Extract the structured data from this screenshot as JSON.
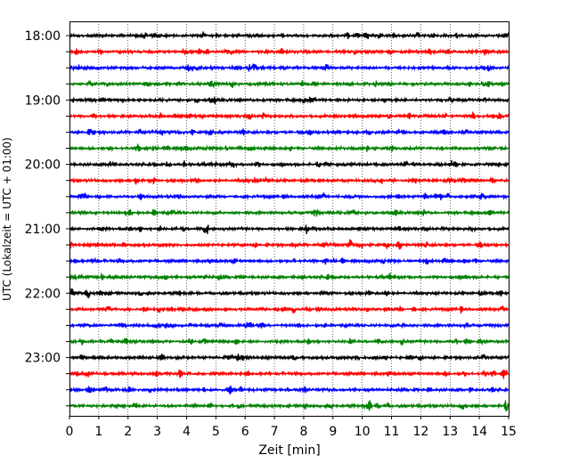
{
  "chart_data": {
    "type": "line",
    "xlabel": "Zeit  [min]",
    "ylabel": "UTC (Lokalzeit = UTC + 01:00)",
    "xlim": [
      0,
      15
    ],
    "x_ticks": [
      "0",
      "1",
      "2",
      "3",
      "4",
      "5",
      "6",
      "7",
      "8",
      "9",
      "10",
      "11",
      "12",
      "13",
      "14",
      "15"
    ],
    "y_tick_labels": [
      "18:00",
      "19:00",
      "20:00",
      "21:00",
      "22:00",
      "23:00"
    ],
    "grid": "vertical-dotted",
    "series_colors": [
      "#000000",
      "#ff0000",
      "#0000ff",
      "#008000"
    ],
    "traces": [
      {
        "start": "18:00",
        "color": "#000000"
      },
      {
        "start": "18:15",
        "color": "#ff0000"
      },
      {
        "start": "18:30",
        "color": "#0000ff"
      },
      {
        "start": "18:45",
        "color": "#008000"
      },
      {
        "start": "19:00",
        "color": "#000000"
      },
      {
        "start": "19:15",
        "color": "#ff0000"
      },
      {
        "start": "19:30",
        "color": "#0000ff"
      },
      {
        "start": "19:45",
        "color": "#008000"
      },
      {
        "start": "20:00",
        "color": "#000000"
      },
      {
        "start": "20:15",
        "color": "#ff0000"
      },
      {
        "start": "20:30",
        "color": "#0000ff"
      },
      {
        "start": "20:45",
        "color": "#008000"
      },
      {
        "start": "21:00",
        "color": "#000000"
      },
      {
        "start": "21:15",
        "color": "#ff0000"
      },
      {
        "start": "21:30",
        "color": "#0000ff"
      },
      {
        "start": "21:45",
        "color": "#008000"
      },
      {
        "start": "22:00",
        "color": "#000000"
      },
      {
        "start": "22:15",
        "color": "#ff0000"
      },
      {
        "start": "22:30",
        "color": "#0000ff"
      },
      {
        "start": "22:45",
        "color": "#008000"
      },
      {
        "start": "23:00",
        "color": "#000000"
      },
      {
        "start": "23:15",
        "color": "#ff0000"
      },
      {
        "start": "23:30",
        "color": "#0000ff"
      },
      {
        "start": "23:45",
        "color": "#008000"
      }
    ]
  }
}
